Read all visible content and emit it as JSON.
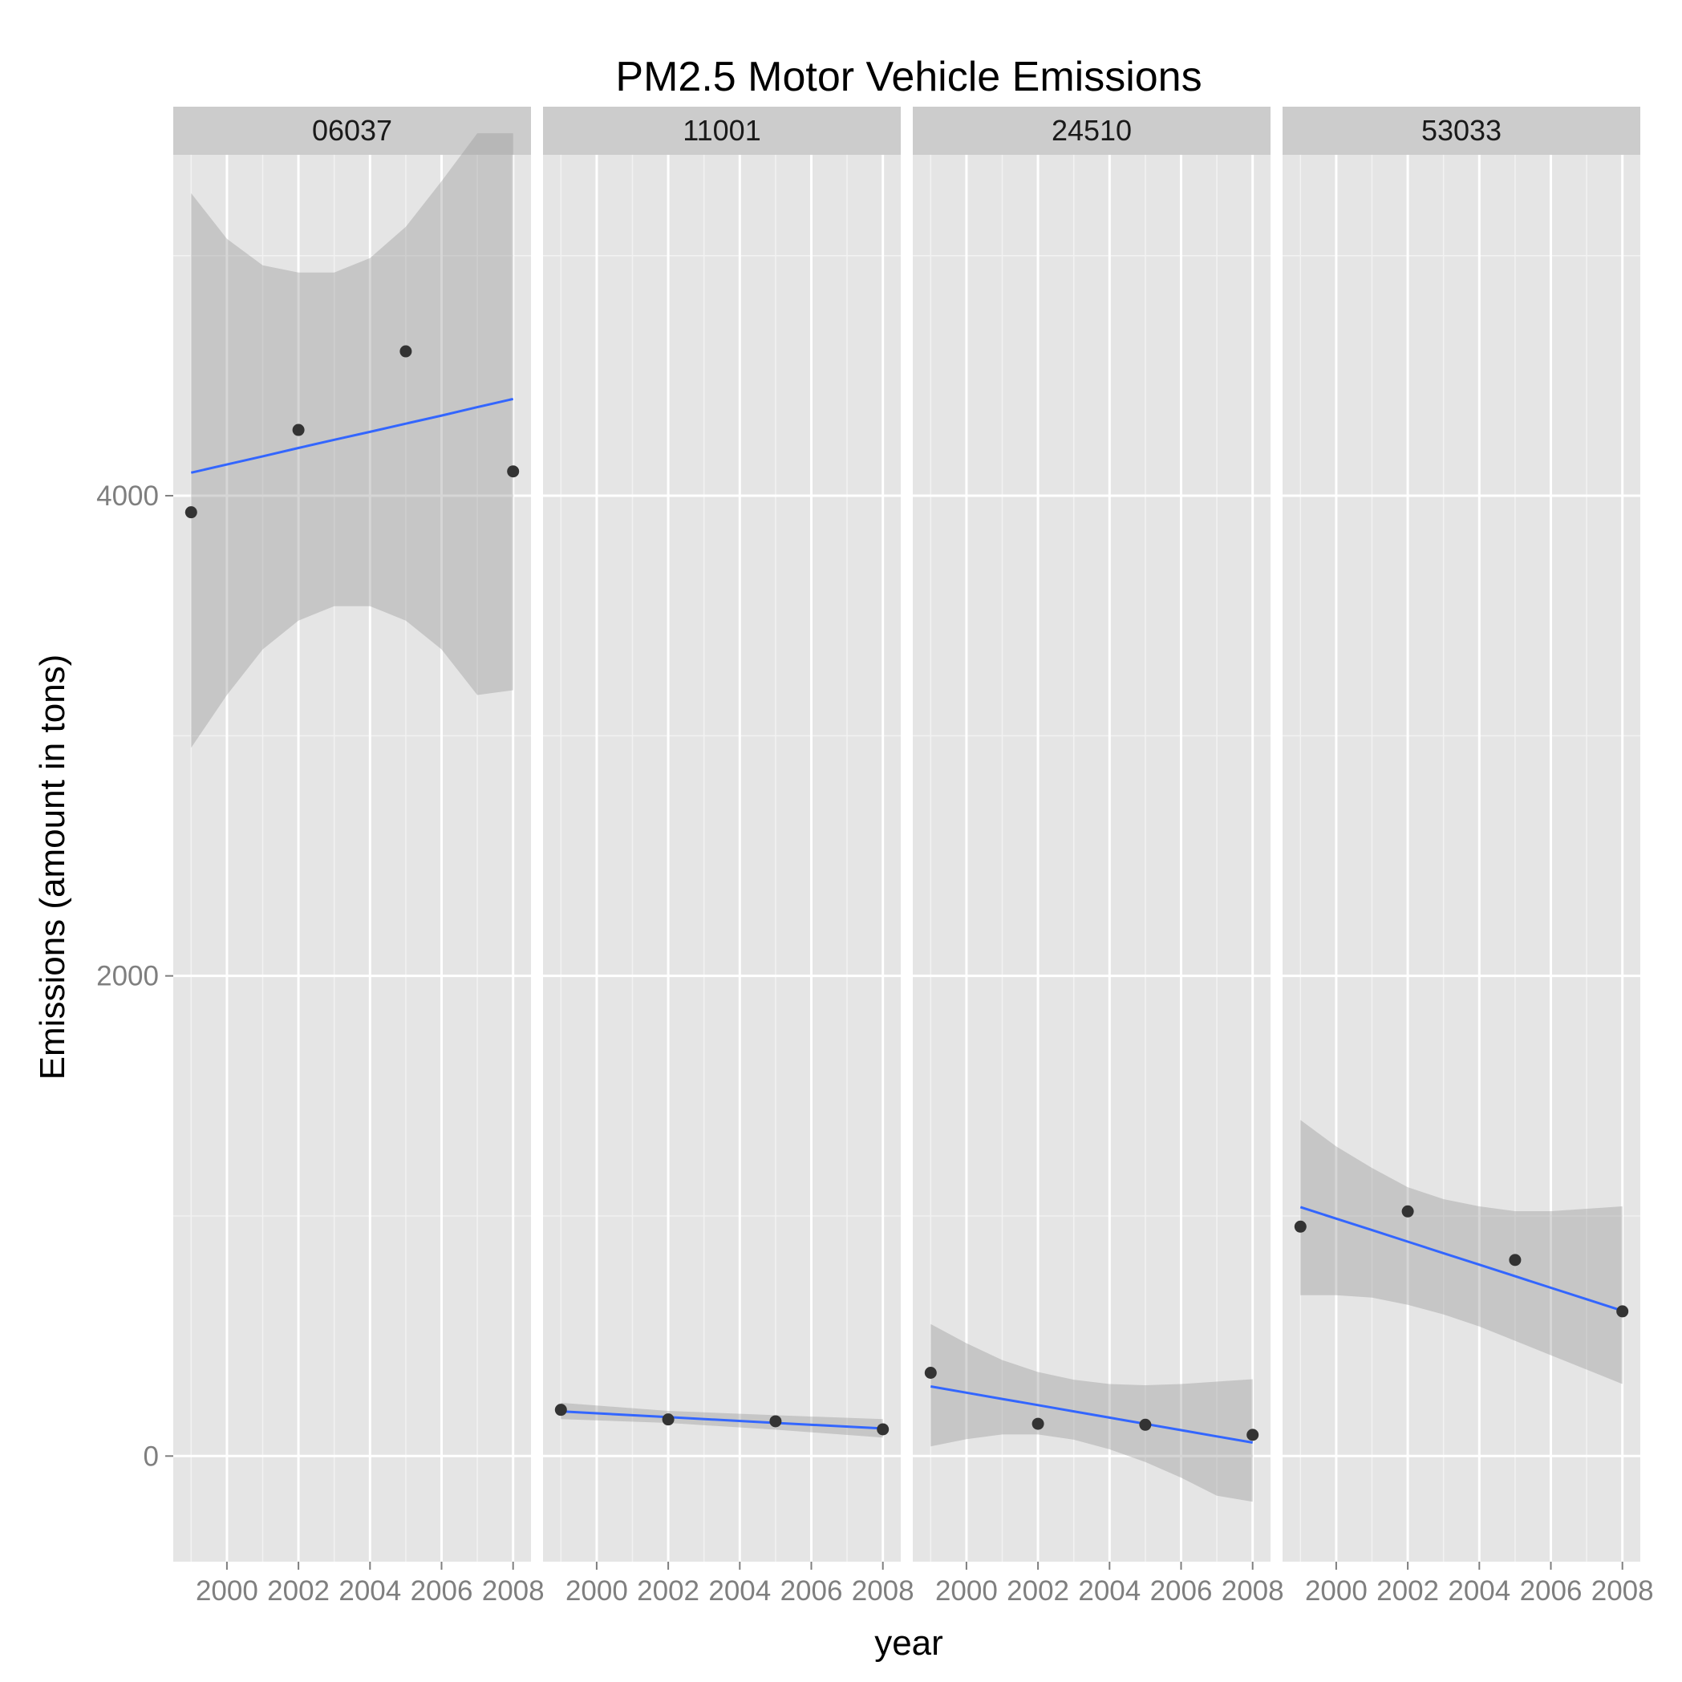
{
  "chart_data": {
    "type": "scatter",
    "title": "PM2.5 Motor Vehicle Emissions",
    "xlabel": "year",
    "ylabel": "Emissions (amount in tons)",
    "xlim": [
      1998.5,
      2008.5
    ],
    "ylim": [
      -440,
      5420
    ],
    "x_ticks": [
      2000,
      2002,
      2004,
      2006,
      2008
    ],
    "x_tick_labels": [
      "2000",
      "2002",
      "2004",
      "2006",
      "2008"
    ],
    "y_ticks": [
      0,
      2000,
      4000
    ],
    "y_tick_labels": [
      "0",
      "2000",
      "4000"
    ],
    "grid": true,
    "legend": "none",
    "colors": {
      "panel_bg": "#e5e5e5",
      "strip_bg": "#cccccc",
      "grid_major": "#ffffff",
      "grid_minor": "#f2f2f2",
      "point": "#333333",
      "fit_line": "#3366ff",
      "ribbon": "#999999",
      "tick_text": "#7f7f7f"
    },
    "panels": [
      {
        "label": "06037",
        "x": [
          1999,
          2002,
          2005,
          2008
        ],
        "y": [
          3931.1,
          4274.0,
          4601.4,
          4101.3
        ],
        "fit": {
          "x": [
            1999,
            2000,
            2001,
            2002,
            2003,
            2004,
            2005,
            2006,
            2007,
            2008
          ],
          "y": [
            4096,
            4130,
            4164,
            4199,
            4233,
            4266,
            4300,
            4334,
            4369,
            4403
          ],
          "lower": [
            2950,
            3170,
            3360,
            3480,
            3540,
            3540,
            3480,
            3360,
            3170,
            3190
          ],
          "upper": [
            5260,
            5070,
            4960,
            4930,
            4930,
            4990,
            5120,
            5310,
            5510,
            5510
          ]
        }
      },
      {
        "label": "11001",
        "x": [
          1999,
          2002,
          2005,
          2008
        ],
        "y": [
          192.5,
          152.4,
          144.8,
          111.3
        ],
        "fit": {
          "x": [
            1999,
            2002,
            2005,
            2008
          ],
          "y": [
            186,
            162,
            138,
            115
          ],
          "lower": [
            154,
            138,
            110,
            77
          ],
          "upper": [
            222,
            188,
            170,
            154
          ]
        }
      },
      {
        "label": "24510",
        "x": [
          1999,
          2002,
          2005,
          2008
        ],
        "y": [
          346.8,
          134.3,
          130.4,
          88.3
        ],
        "fit": {
          "x": [
            1999,
            2000,
            2001,
            2002,
            2003,
            2004,
            2005,
            2006,
            2007,
            2008
          ],
          "y": [
            290,
            264,
            238,
            212,
            186,
            160,
            134,
            108,
            82,
            56
          ],
          "lower": [
            40,
            70,
            90,
            90,
            68,
            28,
            -25,
            -90,
            -165,
            -190
          ],
          "upper": [
            550,
            470,
            400,
            350,
            318,
            300,
            295,
            300,
            310,
            320
          ]
        }
      },
      {
        "label": "53033",
        "x": [
          1999,
          2002,
          2005,
          2008
        ],
        "y": [
          955.5,
          1019.1,
          816.8,
          602.7
        ],
        "fit": {
          "x": [
            1999,
            2000,
            2001,
            2002,
            2003,
            2004,
            2005,
            2006,
            2007,
            2008
          ],
          "y": [
            1037,
            989,
            941,
            893,
            845,
            797,
            749,
            701,
            653,
            605
          ],
          "lower": [
            670,
            670,
            660,
            630,
            590,
            540,
            480,
            420,
            360,
            300
          ],
          "upper": [
            1400,
            1290,
            1200,
            1120,
            1070,
            1040,
            1020,
            1020,
            1030,
            1040
          ]
        }
      }
    ]
  }
}
